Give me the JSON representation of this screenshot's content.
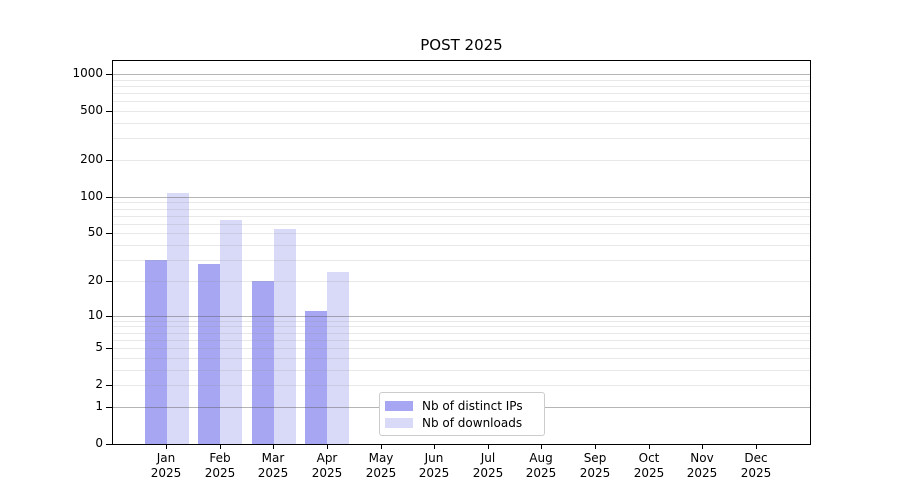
{
  "title": "POST 2025",
  "chart_data": {
    "type": "bar",
    "title": "POST 2025",
    "categories": [
      "Jan",
      "Feb",
      "Mar",
      "Apr",
      "May",
      "Jun",
      "Jul",
      "Aug",
      "Sep",
      "Oct",
      "Nov",
      "Dec"
    ],
    "year_label": "2025",
    "series": [
      {
        "name": "Nb of distinct IPs",
        "color": "#a6a6f2",
        "values": [
          30,
          28,
          20,
          11,
          0,
          0,
          0,
          0,
          0,
          0,
          0,
          0
        ]
      },
      {
        "name": "Nb of downloads",
        "color": "#d9d9f8",
        "values": [
          108,
          65,
          54,
          24,
          0,
          0,
          0,
          0,
          0,
          0,
          0,
          0
        ]
      }
    ],
    "yticks": [
      0,
      1,
      2,
      5,
      10,
      20,
      50,
      100,
      200,
      500,
      1000
    ],
    "yscale": "log1p",
    "ylim": [
      0,
      1270
    ],
    "xlabel": "",
    "ylabel": "",
    "grid": "horizontal",
    "grid_major_color": "#b5b5b5",
    "grid_minor_color": "#e8e8e8",
    "axis_color": "#000000",
    "background": "#ffffff",
    "legend": {
      "position": "inside-bottom-center",
      "background": "#ffffff",
      "border_color": "#cccccc"
    }
  }
}
